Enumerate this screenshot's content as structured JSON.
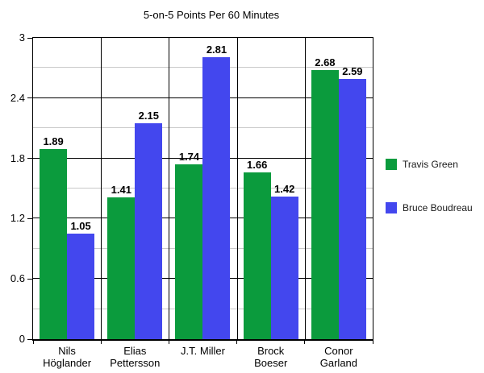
{
  "title": "5-on-5 Points Per 60 Minutes",
  "chart_data": {
    "type": "bar",
    "title": "5-on-5 Points Per 60 Minutes",
    "categories": [
      "Nils Höglander",
      "Elias Pettersson",
      "J.T. Miller",
      "Brock Boeser",
      "Conor Garland"
    ],
    "category_lines": [
      [
        "Nils",
        "Höglander"
      ],
      [
        "Elias",
        "Pettersson"
      ],
      [
        "J.T. Miller"
      ],
      [
        "Brock",
        "Boeser"
      ],
      [
        "Conor",
        "Garland"
      ]
    ],
    "series": [
      {
        "name": "Travis Green",
        "color": "#0b9b3d",
        "values": [
          1.89,
          1.41,
          1.74,
          1.66,
          2.68
        ]
      },
      {
        "name": "Bruce Boudreau",
        "color": "#4347ee",
        "values": [
          1.05,
          2.15,
          2.81,
          1.42,
          2.59
        ]
      }
    ],
    "xlabel": "",
    "ylabel": "",
    "ylim": [
      0,
      3
    ],
    "y_major_ticks": [
      0,
      0.6,
      1.2,
      1.8,
      2.4,
      3
    ],
    "y_minor_ticks": [
      0.3,
      0.9,
      1.5,
      2.1,
      2.7
    ],
    "grid": "horizontal major black, horizontal minor gray, vertical category separators",
    "legend_position": "right",
    "bar_labels": true
  },
  "colors": {
    "series_green": "#0b9b3d",
    "series_blue": "#4347ee",
    "minor_grid": "#c9c9c9",
    "major_grid": "#000000",
    "background": "#ffffff",
    "text": "#000000"
  }
}
